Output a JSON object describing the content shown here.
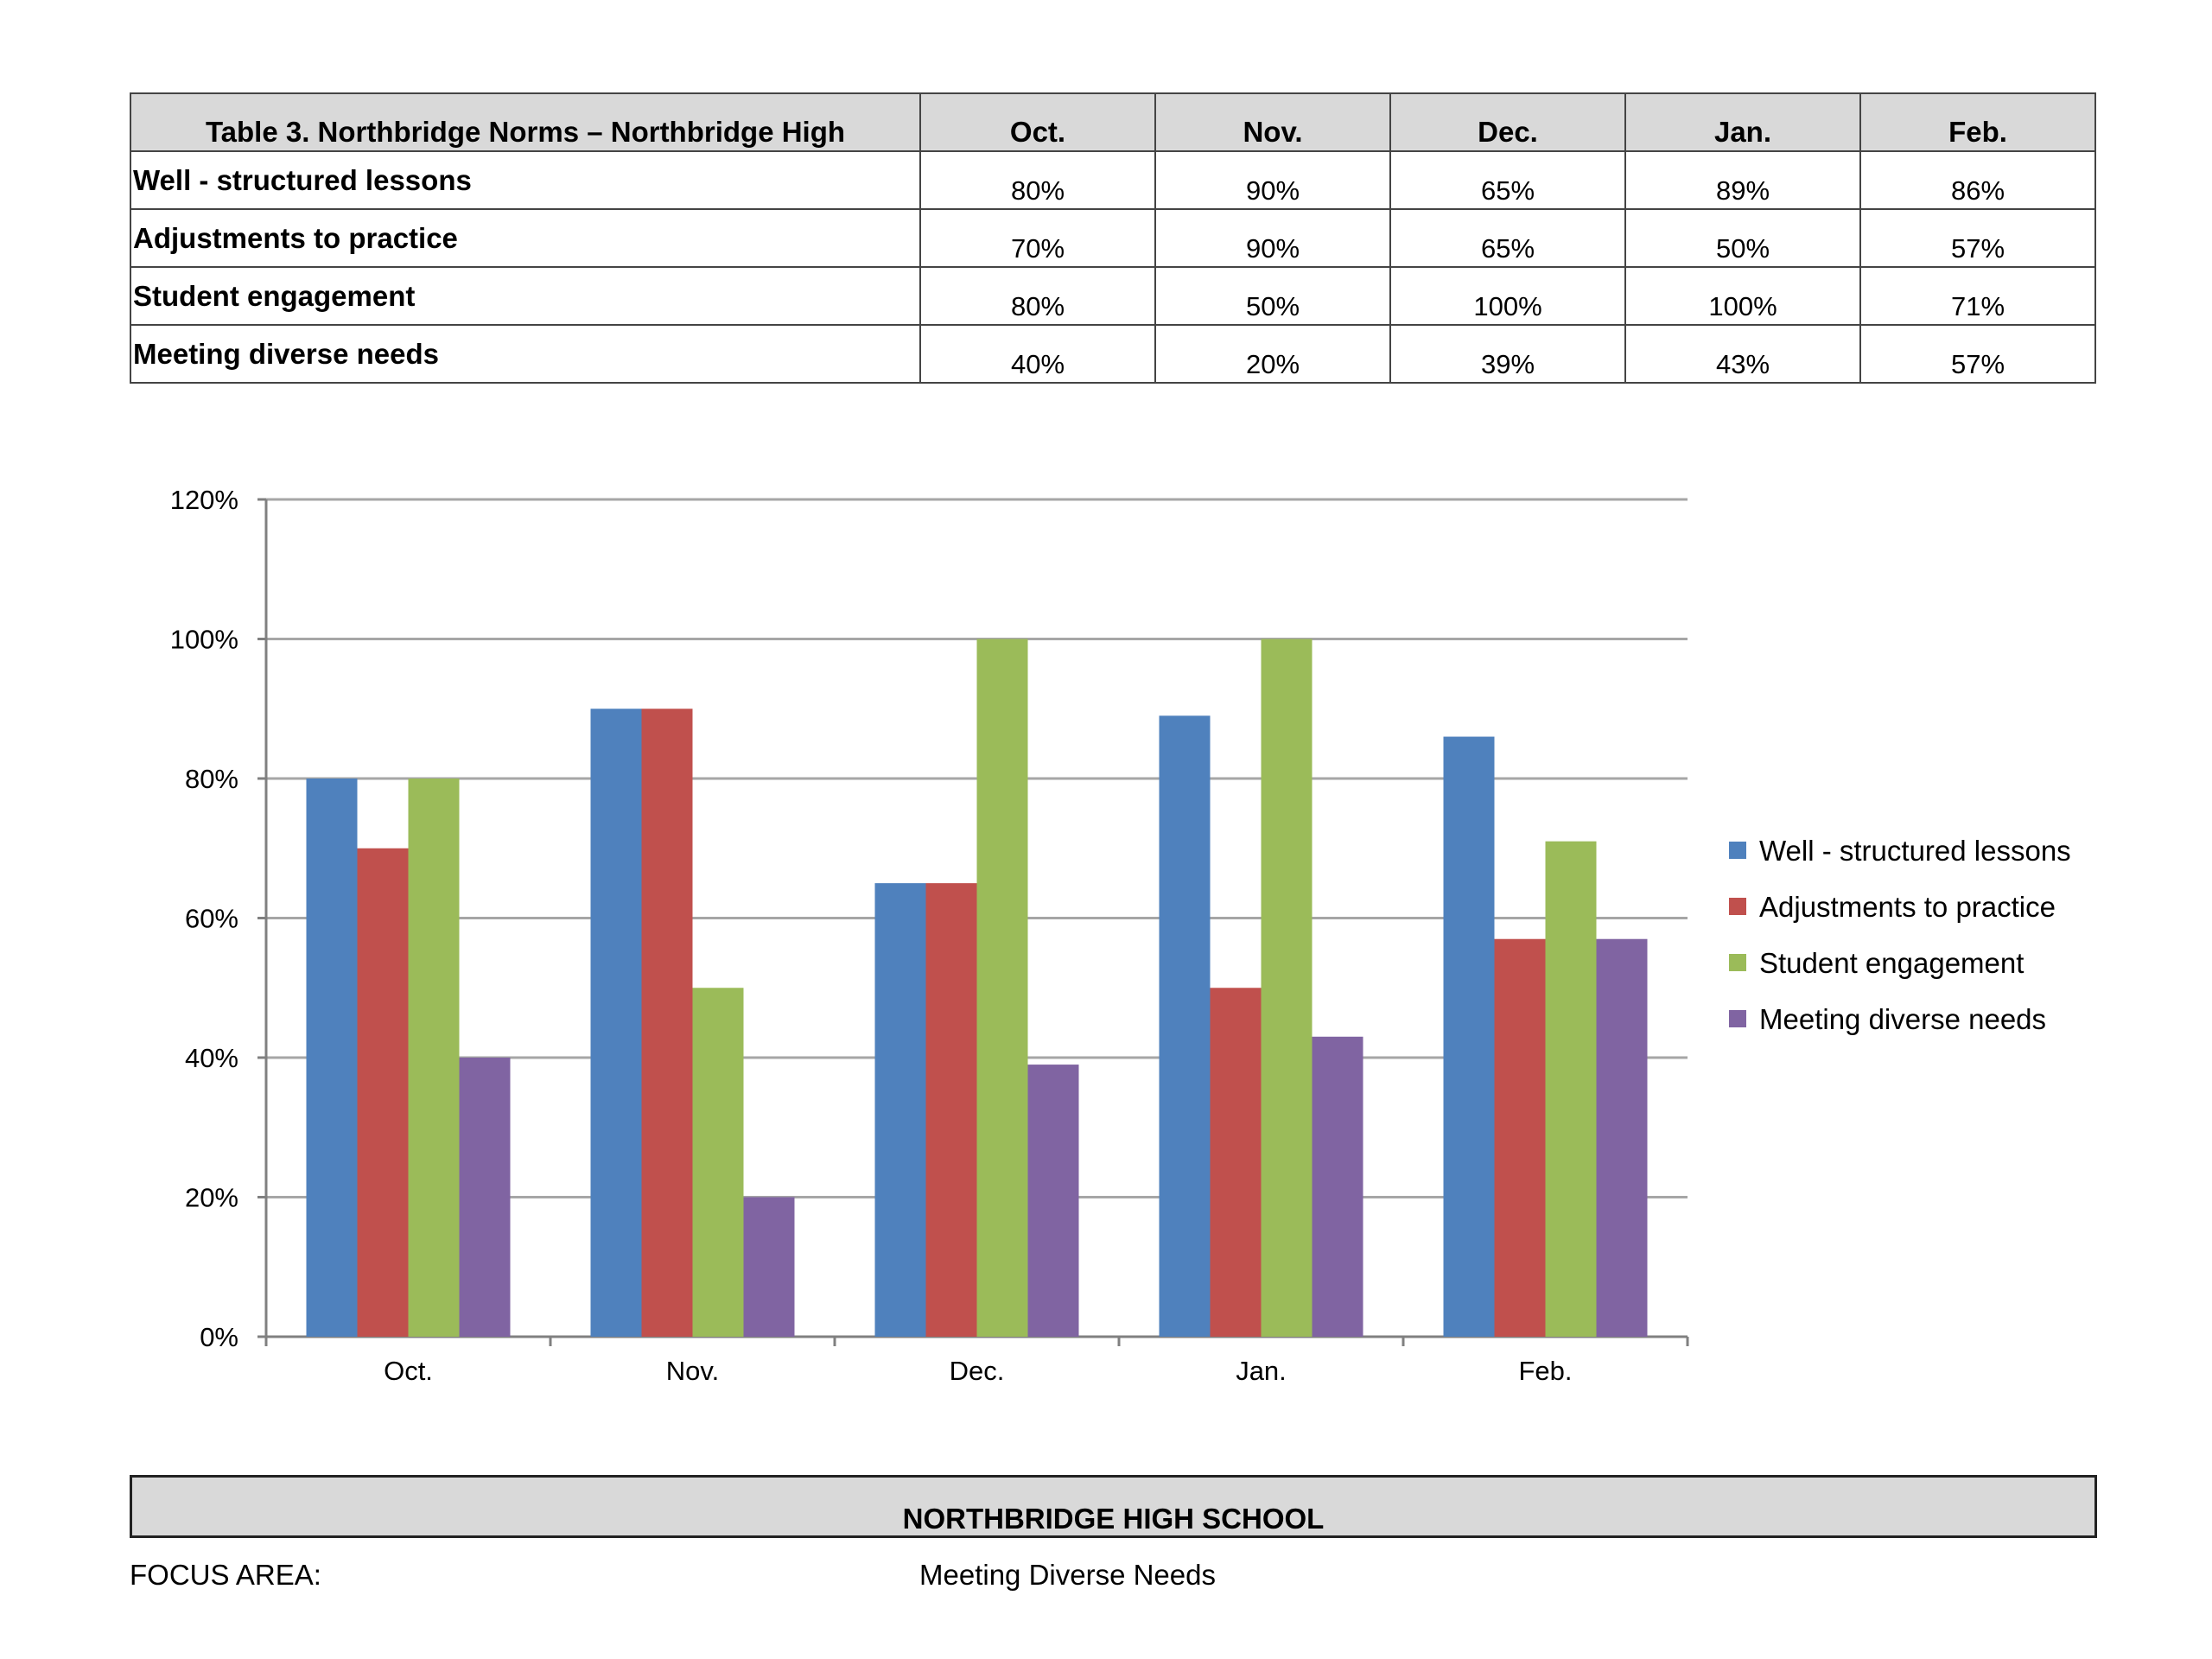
{
  "table": {
    "title": "Table 3. Northbridge Norms – Northbridge High",
    "months": [
      "Oct.",
      "Nov.",
      "Dec.",
      "Jan.",
      "Feb."
    ],
    "rows": [
      {
        "label": "Well - structured lessons",
        "values": [
          "80%",
          "90%",
          "65%",
          "89%",
          "86%"
        ]
      },
      {
        "label": "Adjustments to practice",
        "values": [
          "70%",
          "90%",
          "65%",
          "50%",
          "57%"
        ]
      },
      {
        "label": "Student engagement",
        "values": [
          "80%",
          "50%",
          "100%",
          "100%",
          "71%"
        ]
      },
      {
        "label": "Meeting diverse needs",
        "values": [
          "40%",
          "20%",
          "39%",
          "43%",
          "57%"
        ]
      }
    ]
  },
  "chart_data": {
    "type": "bar",
    "categories": [
      "Oct.",
      "Nov.",
      "Dec.",
      "Jan.",
      "Feb."
    ],
    "series": [
      {
        "name": "Well - structured lessons",
        "color": "#4f81bd",
        "values": [
          80,
          90,
          65,
          89,
          86
        ]
      },
      {
        "name": "Adjustments to practice",
        "color": "#c0504d",
        "values": [
          70,
          90,
          65,
          50,
          57
        ]
      },
      {
        "name": "Student engagement",
        "color": "#9bbb59",
        "values": [
          80,
          50,
          100,
          100,
          71
        ]
      },
      {
        "name": "Meeting diverse needs",
        "color": "#8064a2",
        "values": [
          40,
          20,
          39,
          43,
          57
        ]
      }
    ],
    "ylim": [
      0,
      120
    ],
    "yticks": [
      0,
      20,
      40,
      60,
      80,
      100,
      120
    ],
    "ytick_suffix": "%",
    "grid": true,
    "legend": "right",
    "title": "",
    "xlabel": "",
    "ylabel": ""
  },
  "footer": {
    "school": "NORTHBRIDGE HIGH SCHOOL",
    "focus_label": "FOCUS AREA:",
    "focus_value": "Meeting Diverse Needs"
  }
}
